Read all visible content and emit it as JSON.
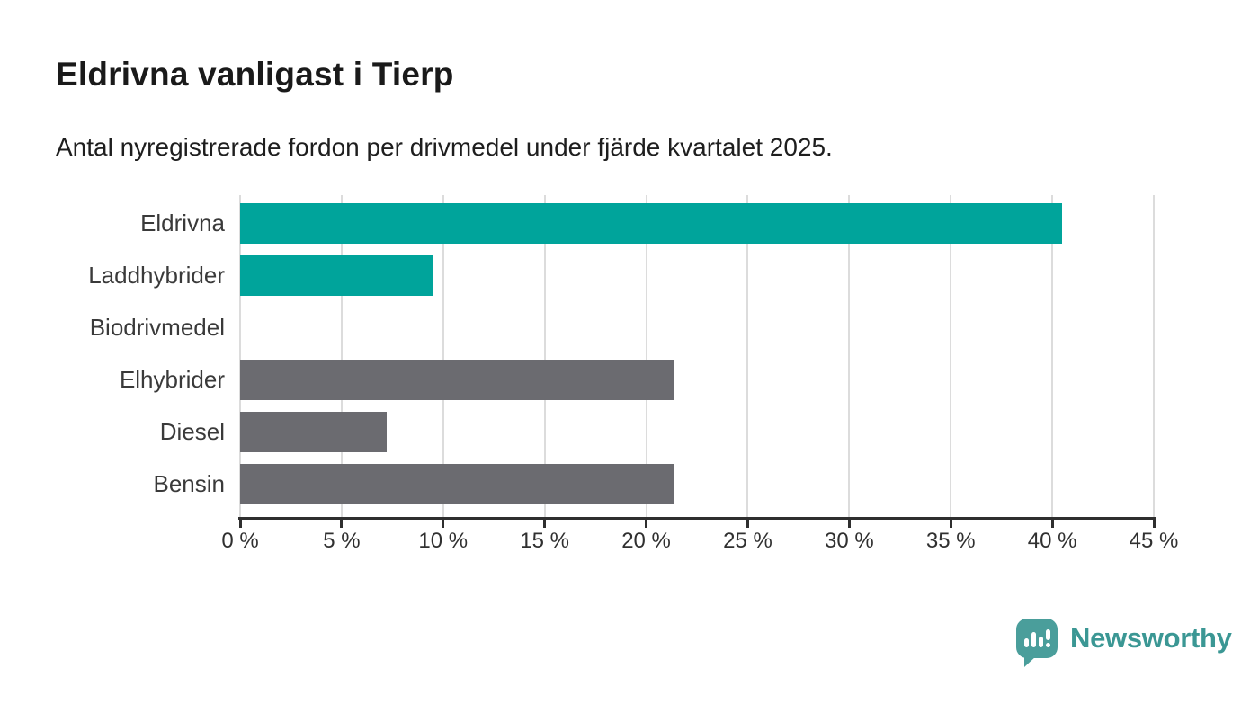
{
  "header": {
    "title": "Eldrivna vanligast i Tierp",
    "subtitle": "Antal nyregistrerade fordon per drivmedel under fjärde kvartalet 2025."
  },
  "chart_data": {
    "type": "bar",
    "orientation": "horizontal",
    "title": "Eldrivna vanligast i Tierp",
    "subtitle": "Antal nyregistrerade fordon per drivmedel under fjärde kvartalet 2025.",
    "categories": [
      "Eldrivna",
      "Laddhybrider",
      "Biodrivmedel",
      "Elhybrider",
      "Diesel",
      "Bensin"
    ],
    "values": [
      40.5,
      9.5,
      0,
      21.4,
      7.2,
      21.4
    ],
    "bar_colors": [
      "#00a49b",
      "#00a49b",
      "#00a49b",
      "#6b6b70",
      "#6b6b70",
      "#6b6b70"
    ],
    "xlabel": "",
    "ylabel": "",
    "xlim": [
      0,
      45
    ],
    "x_tick_values": [
      0,
      5,
      10,
      15,
      20,
      25,
      30,
      35,
      40,
      45
    ],
    "x_tick_labels": [
      "0 %",
      "5 %",
      "10 %",
      "15 %",
      "20 %",
      "25 %",
      "30 %",
      "35 %",
      "40 %",
      "45 %"
    ],
    "grid": "vertical-only",
    "legend": "none",
    "colors": {
      "highlight": "#00a49b",
      "base": "#6b6b70",
      "gridline": "#dcdcdc",
      "axis": "#2f2f2f",
      "label_text": "#3a3a3a"
    }
  },
  "footer": {
    "brand": "Newsworthy",
    "brand_text_color": "#3b9794",
    "badge_color": "#4a9e9b",
    "logo_icon": "newsworthy-badge-icon"
  }
}
